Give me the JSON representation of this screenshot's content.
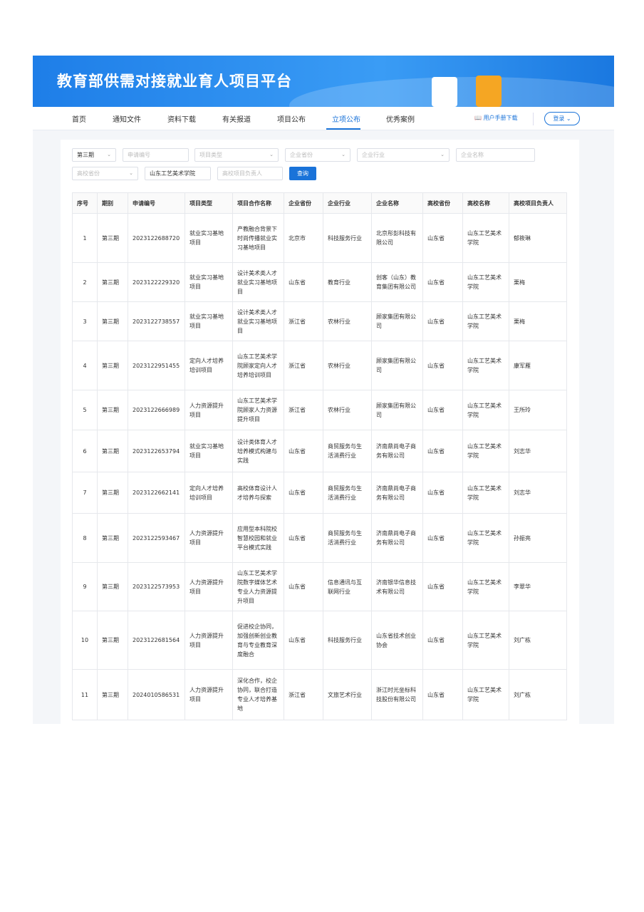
{
  "banner": {
    "title": "教育部供需对接就业育人项目平台"
  },
  "nav": {
    "items": [
      "首页",
      "通知文件",
      "资料下载",
      "有关报道",
      "项目公布",
      "立项公布",
      "优秀案例"
    ],
    "active": "立项公布",
    "manual": "用户手册下载",
    "login": "登录"
  },
  "filters": {
    "period": "第三期",
    "app_no": "申请编号",
    "project_type": "项目类型",
    "ent_province": "企业省份",
    "ent_industry": "企业行业",
    "ent_name": "企业名称",
    "uni_province": "高校省份",
    "uni_name": "山东工艺美术学院",
    "uni_lead": "高校项目负责人",
    "query": "查询"
  },
  "colors": {
    "accent": "#1a73d9"
  },
  "table": {
    "headers": [
      "序号",
      "期别",
      "申请编号",
      "项目类型",
      "项目合作名称",
      "企业省份",
      "企业行业",
      "企业名称",
      "高校省份",
      "高校名称",
      "高校项目负责人"
    ],
    "rows": [
      [
        "1",
        "第三期",
        "2023122688720",
        "就业实习基地项目",
        "产教融合背景下时尚传播就业实习基地项目",
        "北京市",
        "科技服务行业",
        "北京彤彭科技有限公司",
        "山东省",
        "山东工艺美术学院",
        "郁筱琳"
      ],
      [
        "2",
        "第三期",
        "2023122229320",
        "就业实习基地项目",
        "设计美术类人才就业实习基地项目",
        "山东省",
        "教育行业",
        "创客（山东）教育集团有限公司",
        "山东省",
        "山东工艺美术学院",
        "栗梅"
      ],
      [
        "3",
        "第三期",
        "2023122738557",
        "就业实习基地项目",
        "设计美术类人才就业实习基地项目",
        "浙江省",
        "农林行业",
        "顾家集团有限公司",
        "山东省",
        "山东工艺美术学院",
        "栗梅"
      ],
      [
        "4",
        "第三期",
        "2023122951455",
        "定向人才培养培训项目",
        "山东工艺美术学院顾家定向人才培养培训项目",
        "浙江省",
        "农林行业",
        "顾家集团有限公司",
        "山东省",
        "山东工艺美术学院",
        "康军雁"
      ],
      [
        "5",
        "第三期",
        "2023122666989",
        "人力资源提升项目",
        "山东工艺美术学院顾家人力资源提升项目",
        "浙江省",
        "农林行业",
        "顾家集团有限公司",
        "山东省",
        "山东工艺美术学院",
        "王所玲"
      ],
      [
        "6",
        "第三期",
        "2023122653794",
        "就业实习基地项目",
        "设计类体育人才培养模式构建与实践",
        "山东省",
        "商贸服务与生活消费行业",
        "济南鼎尚电子商务有限公司",
        "山东省",
        "山东工艺美术学院",
        "刘志华"
      ],
      [
        "7",
        "第三期",
        "2023122662141",
        "定向人才培养培训项目",
        "高校体育设计人才培养与探索",
        "山东省",
        "商贸服务与生活消费行业",
        "济南鼎尚电子商务有限公司",
        "山东省",
        "山东工艺美术学院",
        "刘志华"
      ],
      [
        "8",
        "第三期",
        "2023122593467",
        "人力资源提升项目",
        "应用型本科院校智慧校园和就业平台模式实践",
        "山东省",
        "商贸服务与生活消费行业",
        "济南鼎尚电子商务有限公司",
        "山东省",
        "山东工艺美术学院",
        "孙振亮"
      ],
      [
        "9",
        "第三期",
        "2023122573953",
        "人力资源提升项目",
        "山东工艺美术学院数字媒体艺术专业人力资源提升项目",
        "山东省",
        "信息通讯与互联网行业",
        "济南银华信息技术有限公司",
        "山东省",
        "山东工艺美术学院",
        "李翠华"
      ],
      [
        "10",
        "第三期",
        "2023122681564",
        "人力资源提升项目",
        "促进校企协同，加强创新创业教育与专业教育深度融合",
        "山东省",
        "科技服务行业",
        "山东省技术创业协会",
        "山东省",
        "山东工艺美术学院",
        "刘广栋"
      ],
      [
        "11",
        "第三期",
        "2024010586531",
        "人力资源提升项目",
        "深化合作，校企协同，联合打造专业人才培养基地",
        "浙江省",
        "文旅艺术行业",
        "浙江时光坐标科技股份有限公司",
        "山东省",
        "山东工艺美术学院",
        "刘广栋"
      ]
    ]
  }
}
